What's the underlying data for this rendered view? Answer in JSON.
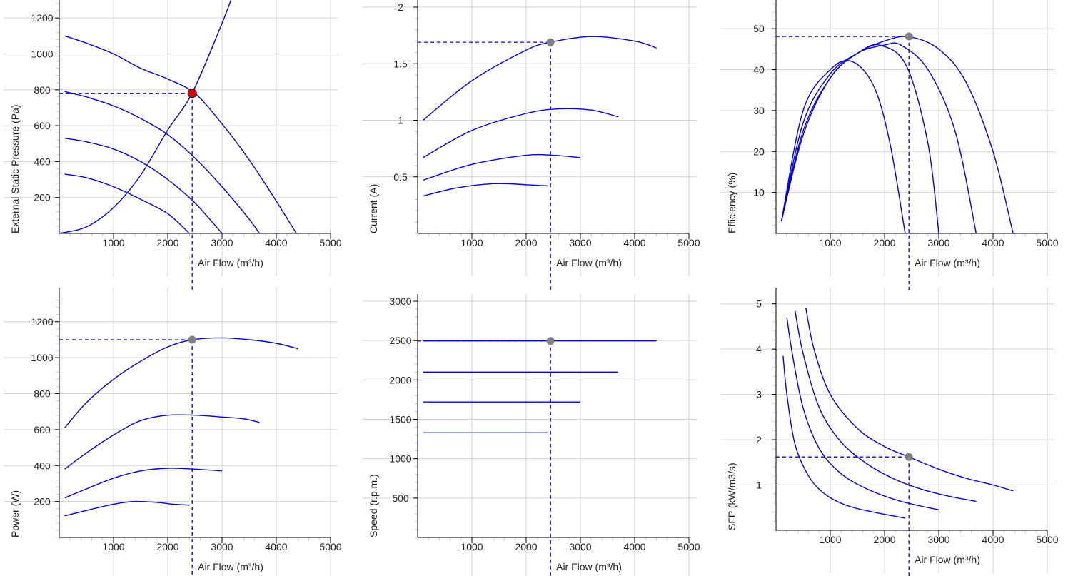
{
  "colors": {
    "curve": "#0000dd",
    "grid": "#d0d0d0",
    "marker_main": "#e00000",
    "marker": "#808080"
  },
  "chart_data": [
    {
      "type": "line",
      "ylabel": "External Static Pressure (Pa)",
      "xlabel": "Air Flow (m³/h)",
      "xlim": [
        0,
        5000
      ],
      "ylim": [
        0,
        1300
      ],
      "xticks": [
        1000,
        2000,
        3000,
        4000,
        5000
      ],
      "yticks": [
        200,
        400,
        600,
        800,
        1000,
        1200
      ],
      "grid": true,
      "series": [
        {
          "x": [
            100,
            500,
            1000,
            1500,
            2000,
            2500,
            3000,
            3500,
            4000,
            4370
          ],
          "y": [
            1100,
            1060,
            1000,
            920,
            860,
            780,
            610,
            410,
            180,
            0
          ]
        },
        {
          "x": [
            100,
            500,
            1000,
            1500,
            2000,
            2500,
            3000,
            3500,
            3690
          ],
          "y": [
            790,
            760,
            710,
            640,
            550,
            420,
            260,
            80,
            0
          ]
        },
        {
          "x": [
            100,
            500,
            1000,
            1500,
            2000,
            2500,
            3000
          ],
          "y": [
            530,
            510,
            470,
            400,
            300,
            170,
            0
          ]
        },
        {
          "x": [
            100,
            500,
            1000,
            1500,
            2000,
            2400
          ],
          "y": [
            330,
            310,
            260,
            190,
            110,
            0
          ]
        },
        {
          "x": [
            0,
            500,
            1000,
            1500,
            2000,
            2450,
            3000,
            3200
          ],
          "y": [
            0,
            36,
            144,
            324,
            576,
            782,
            1170,
            1330
          ]
        }
      ],
      "operating_point": {
        "x": 2450,
        "y": 780
      }
    },
    {
      "type": "line",
      "ylabel": "Current (A)",
      "xlabel": "Air Flow (m³/h)",
      "xlim": [
        0,
        5000
      ],
      "ylim": [
        0,
        2
      ],
      "xticks": [
        1000,
        2000,
        3000,
        4000,
        5000
      ],
      "yticks": [
        0.5,
        1,
        1.5,
        2
      ],
      "grid": true,
      "series": [
        {
          "x": [
            100,
            1000,
            2000,
            2450,
            3200,
            4000,
            4400
          ],
          "y": [
            1.0,
            1.35,
            1.62,
            1.69,
            1.74,
            1.7,
            1.64
          ]
        },
        {
          "x": [
            100,
            1000,
            2000,
            2600,
            3200,
            3700
          ],
          "y": [
            0.67,
            0.91,
            1.06,
            1.1,
            1.09,
            1.03
          ]
        },
        {
          "x": [
            100,
            1000,
            2000,
            2500,
            3000
          ],
          "y": [
            0.47,
            0.61,
            0.69,
            0.69,
            0.67
          ]
        },
        {
          "x": [
            100,
            700,
            1400,
            2000,
            2400
          ],
          "y": [
            0.33,
            0.4,
            0.44,
            0.43,
            0.42
          ]
        }
      ],
      "operating_point": {
        "x": 2450,
        "y": 1.69
      }
    },
    {
      "type": "line",
      "ylabel": "Efficiency (%)",
      "xlabel": "Air Flow (m³/h)",
      "xlim": [
        0,
        5000
      ],
      "ylim": [
        0,
        57
      ],
      "xticks": [
        1000,
        2000,
        3000,
        4000,
        5000
      ],
      "yticks": [
        10,
        20,
        30,
        40,
        50
      ],
      "grid": true,
      "series": [
        {
          "x": [
            100,
            500,
            1000,
            1500,
            2000,
            2450,
            3000,
            3500,
            4000,
            4370
          ],
          "y": [
            3,
            24,
            38,
            44,
            47,
            48,
            45,
            37,
            20,
            0
          ]
        },
        {
          "x": [
            100,
            500,
            1000,
            1500,
            2000,
            2300,
            2800,
            3300,
            3690
          ],
          "y": [
            3,
            25,
            38,
            44,
            46,
            46,
            40,
            25,
            0
          ]
        },
        {
          "x": [
            100,
            500,
            1000,
            1500,
            1900,
            2400,
            2800,
            3000
          ],
          "y": [
            3,
            27,
            39,
            44,
            46,
            41,
            22,
            0
          ]
        },
        {
          "x": [
            100,
            500,
            1000,
            1400,
            1800,
            2100,
            2380
          ],
          "y": [
            3,
            30,
            40,
            42,
            36,
            22,
            0
          ]
        }
      ],
      "operating_point": {
        "x": 2450,
        "y": 48.1
      }
    },
    {
      "type": "line",
      "ylabel": "Power (W)",
      "xlabel": "Air Flow (m³/h)",
      "xlim": [
        0,
        5000
      ],
      "ylim": [
        0,
        1350
      ],
      "xticks": [
        1000,
        2000,
        3000,
        4000,
        5000
      ],
      "yticks": [
        200,
        400,
        600,
        800,
        1000,
        1200
      ],
      "grid": true,
      "series": [
        {
          "x": [
            100,
            500,
            1000,
            1500,
            2000,
            2450,
            3000,
            3500,
            4000,
            4400
          ],
          "y": [
            610,
            750,
            880,
            980,
            1060,
            1100,
            1110,
            1100,
            1080,
            1050
          ]
        },
        {
          "x": [
            100,
            500,
            1000,
            1500,
            2000,
            2500,
            3000,
            3400,
            3690
          ],
          "y": [
            380,
            470,
            570,
            650,
            680,
            680,
            670,
            660,
            640
          ]
        },
        {
          "x": [
            100,
            500,
            1000,
            1500,
            2000,
            2500,
            3000
          ],
          "y": [
            220,
            270,
            330,
            370,
            385,
            380,
            370
          ]
        },
        {
          "x": [
            100,
            500,
            1000,
            1400,
            1800,
            2100,
            2400
          ],
          "y": [
            120,
            150,
            185,
            200,
            195,
            185,
            180
          ]
        }
      ],
      "operating_point": {
        "x": 2450,
        "y": 1100
      }
    },
    {
      "type": "line",
      "ylabel": "Speed (r.p.m.)",
      "xlabel": "Air Flow (m³/h)",
      "xlim": [
        0,
        5000
      ],
      "ylim": [
        0,
        3000
      ],
      "xticks": [
        1000,
        2000,
        3000,
        4000,
        5000
      ],
      "yticks": [
        500,
        1000,
        1500,
        2000,
        2500,
        3000
      ],
      "grid": true,
      "series": [
        {
          "x": [
            100,
            4400
          ],
          "y": [
            2495,
            2495
          ]
        },
        {
          "x": [
            100,
            3690
          ],
          "y": [
            2100,
            2100
          ]
        },
        {
          "x": [
            100,
            3000
          ],
          "y": [
            1720,
            1720
          ]
        },
        {
          "x": [
            100,
            2400
          ],
          "y": [
            1330,
            1330
          ]
        }
      ],
      "operating_point": {
        "x": 2450,
        "y": 2495
      }
    },
    {
      "type": "line",
      "ylabel": "SFP (kW/m3/s)",
      "xlabel": "Air Flow (m³/h)",
      "xlim": [
        0,
        5000
      ],
      "ylim": [
        0,
        5.2
      ],
      "xticks": [
        1000,
        2000,
        3000,
        4000,
        5000
      ],
      "yticks": [
        1,
        2,
        3,
        4,
        5
      ],
      "grid": true,
      "series": [
        {
          "x": [
            550,
            700,
            1000,
            1500,
            2000,
            2450,
            3000,
            3500,
            4000,
            4370
          ],
          "y": [
            4.9,
            4.0,
            3.0,
            2.25,
            1.85,
            1.62,
            1.35,
            1.15,
            1.0,
            0.87
          ]
        },
        {
          "x": [
            350,
            500,
            800,
            1200,
            1700,
            2200,
            2700,
            3200,
            3690
          ],
          "y": [
            4.85,
            3.9,
            2.7,
            1.95,
            1.45,
            1.12,
            0.9,
            0.75,
            0.64
          ]
        },
        {
          "x": [
            200,
            300,
            500,
            800,
            1200,
            1700,
            2300,
            3000
          ],
          "y": [
            4.7,
            3.9,
            2.7,
            1.8,
            1.25,
            0.9,
            0.64,
            0.45
          ]
        },
        {
          "x": [
            130,
            200,
            350,
            600,
            900,
            1300,
            1800,
            2380
          ],
          "y": [
            3.85,
            3.0,
            1.9,
            1.2,
            0.8,
            0.55,
            0.4,
            0.27
          ]
        }
      ],
      "operating_point": {
        "x": 2450,
        "y": 1.62
      }
    }
  ]
}
